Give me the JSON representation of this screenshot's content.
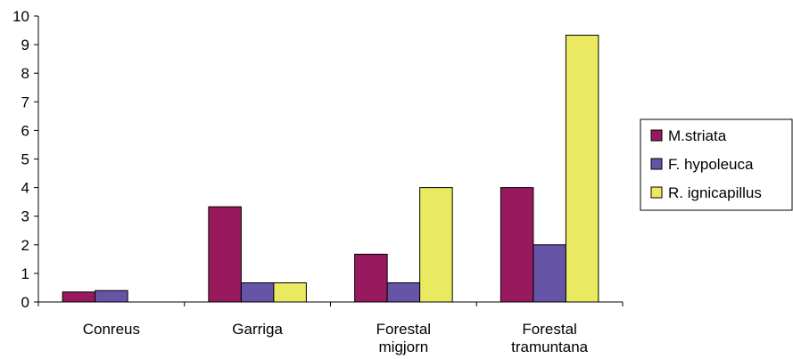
{
  "chart_data": {
    "type": "bar",
    "title": "",
    "xlabel": "",
    "ylabel": "",
    "ylim": [
      0,
      10
    ],
    "yticks": [
      "0",
      "1",
      "2",
      "3",
      "4",
      "5",
      "6",
      "7",
      "8",
      "9",
      "10"
    ],
    "grid": false,
    "legend_position": "right",
    "categories": [
      [
        "Conreus"
      ],
      [
        "Garriga"
      ],
      [
        "Forestal",
        "migjorn"
      ],
      [
        "Forestal",
        "tramuntana"
      ]
    ],
    "series": [
      {
        "name": "M.striata",
        "color": "#99195e",
        "values": [
          0.35,
          3.33,
          1.67,
          4.0
        ]
      },
      {
        "name": "F. hypoleuca",
        "color": "#6655a6",
        "values": [
          0.4,
          0.67,
          0.67,
          2.0
        ]
      },
      {
        "name": "R. ignicapillus",
        "color": "#eaea62",
        "values": [
          0,
          0.67,
          4.0,
          9.33
        ]
      }
    ]
  }
}
